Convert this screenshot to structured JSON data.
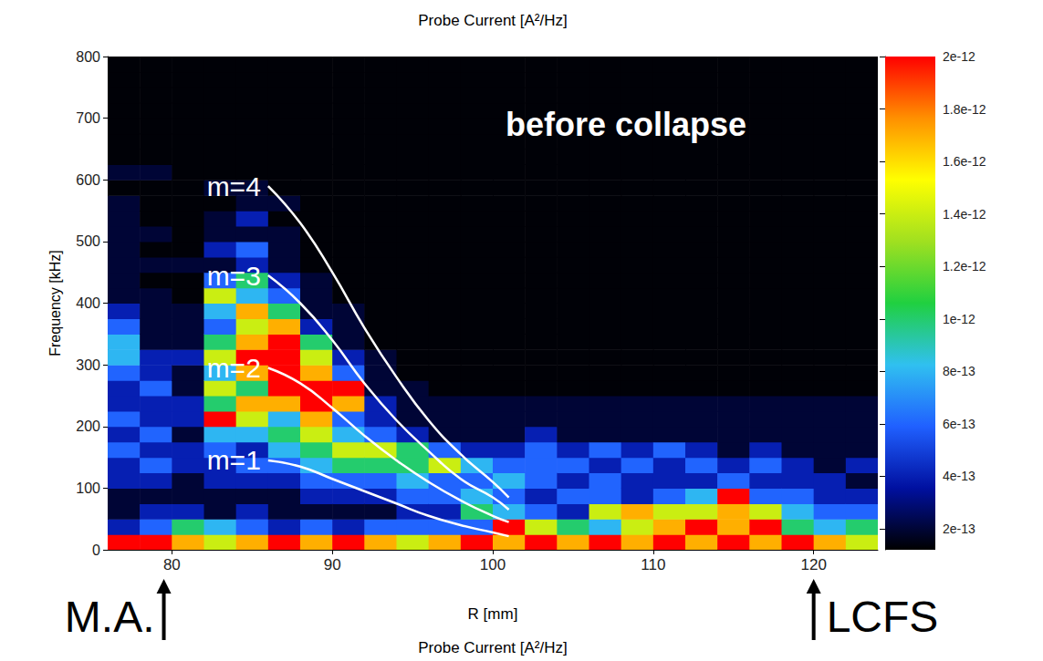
{
  "chart_data": {
    "type": "heatmap",
    "title": "Probe Current [A²/Hz]",
    "subtitle": "Probe Current [A²/Hz]",
    "x_label": "R [mm]",
    "y_label": "Frequency [kHz]",
    "xlim": [
      76,
      124
    ],
    "xticks": [
      80,
      90,
      100,
      110,
      120
    ],
    "ylim": [
      0,
      800
    ],
    "yticks": [
      0,
      100,
      200,
      300,
      400,
      500,
      600,
      700,
      800
    ],
    "grid": false,
    "x_bins": [
      76,
      78,
      80,
      82,
      84,
      86,
      88,
      90,
      92,
      94,
      96,
      98,
      100,
      102,
      104,
      106,
      108,
      110,
      112,
      114,
      116,
      118,
      120,
      122,
      124
    ],
    "y_bins": [
      0,
      25,
      50,
      75,
      100,
      125,
      150,
      175,
      200,
      225,
      250,
      275,
      300,
      325,
      350,
      375,
      400,
      425,
      450,
      475,
      500,
      525,
      550,
      575,
      600,
      625,
      650,
      675,
      700,
      725,
      750,
      775,
      800
    ],
    "cells": [
      [
        2e-12,
        4e-13,
        2e-13,
        2e-13,
        4e-13,
        4e-13,
        6e-13,
        4e-13,
        6e-13,
        4e-13,
        4e-13,
        6e-13,
        8e-13,
        8e-13,
        6e-13,
        4e-13,
        2e-13,
        2e-13,
        2e-13,
        2e-13,
        2e-13,
        2e-13,
        2e-13,
        1.3e-13,
        2e-13,
        1.3e-13,
        1.3e-13,
        1.3e-13,
        1.3e-13,
        1.3e-13,
        1.3e-13,
        1.3e-13
      ],
      [
        2e-12,
        6e-13,
        4e-13,
        2e-13,
        4e-13,
        6e-13,
        4e-13,
        6e-13,
        4e-13,
        4e-13,
        6e-13,
        4e-13,
        4e-13,
        2e-13,
        2e-13,
        2e-13,
        2e-13,
        1.3e-13,
        2e-13,
        1.3e-13,
        2e-13,
        1.3e-13,
        1.3e-13,
        1.3e-13,
        2e-13,
        1.3e-13,
        1.3e-13,
        1.3e-13,
        1.3e-13,
        1.3e-13,
        1.3e-13,
        1.3e-13
      ],
      [
        1.7e-12,
        1e-12,
        4e-13,
        2e-13,
        2e-13,
        4e-13,
        4e-13,
        2e-13,
        4e-13,
        4e-13,
        2e-13,
        2e-13,
        4e-13,
        2e-13,
        2e-13,
        2e-13,
        1.3e-13,
        1.3e-13,
        2e-13,
        1.3e-13,
        1.3e-13,
        1.3e-13,
        1.3e-13,
        1.3e-13,
        1.3e-13,
        1.3e-13,
        1.3e-13,
        1.3e-13,
        1.3e-13,
        1.3e-13,
        1.3e-13,
        1.3e-13
      ],
      [
        1.4e-12,
        8e-13,
        2e-13,
        2e-13,
        4e-13,
        4e-13,
        6e-13,
        8e-13,
        2e-12,
        1e-12,
        1.4e-12,
        8e-13,
        1.4e-12,
        1e-12,
        6e-13,
        8e-13,
        1.4e-12,
        6e-13,
        2e-13,
        4e-13,
        2e-13,
        2e-13,
        1.3e-13,
        2e-13,
        1.3e-13,
        1.3e-13,
        1.3e-13,
        1.3e-13,
        1.3e-13,
        1.3e-13,
        1.3e-13,
        1.3e-13
      ],
      [
        1.7e-12,
        6e-13,
        4e-13,
        2e-13,
        4e-13,
        6e-13,
        4e-13,
        8e-13,
        1.4e-12,
        1.7e-12,
        1e-12,
        1.7e-12,
        2e-12,
        1.7e-12,
        1.4e-12,
        1.7e-12,
        8e-13,
        1e-12,
        4e-13,
        6e-13,
        2e-13,
        4e-13,
        2e-13,
        2e-13,
        1.3e-13,
        1.3e-13,
        1.3e-13,
        1.3e-13,
        1.3e-13,
        1.3e-13,
        1.3e-13,
        1.3e-13
      ],
      [
        2e-12,
        4e-13,
        2e-13,
        2e-13,
        4e-13,
        6e-13,
        8e-13,
        1e-12,
        8e-13,
        1.7e-12,
        2e-12,
        2e-12,
        2e-12,
        2e-12,
        1.7e-12,
        1e-12,
        6e-13,
        4e-13,
        2e-13,
        2e-13,
        2e-13,
        1.3e-13,
        2e-13,
        1.3e-13,
        1.3e-13,
        1.3e-13,
        1.3e-13,
        1.3e-13,
        1.3e-13,
        1.3e-13,
        1.3e-13,
        1.3e-13
      ],
      [
        1.7e-12,
        6e-13,
        2e-13,
        4e-13,
        6e-13,
        8e-13,
        1e-12,
        1.4e-12,
        1.7e-12,
        2e-12,
        2e-12,
        1.7e-12,
        1.4e-12,
        1e-12,
        4e-13,
        2e-13,
        2e-13,
        2e-13,
        1.3e-13,
        1.3e-13,
        1.3e-13,
        1.3e-13,
        1.3e-13,
        1.3e-13,
        1.3e-13,
        1.3e-13,
        1.3e-13,
        1.3e-13,
        1.3e-13,
        1.3e-13,
        1.3e-13,
        1.3e-13
      ],
      [
        2e-12,
        4e-13,
        2e-13,
        4e-13,
        6e-13,
        1e-12,
        1.4e-12,
        8e-13,
        6e-13,
        1.7e-12,
        2e-12,
        6e-13,
        4e-13,
        2e-13,
        2e-13,
        2e-13,
        1.3e-13,
        1.3e-13,
        1.3e-13,
        1.3e-13,
        1.3e-13,
        1.3e-13,
        1.3e-13,
        1.3e-13,
        1.3e-13,
        1.3e-13,
        1.3e-13,
        1.3e-13,
        1.3e-13,
        1.3e-13,
        1.3e-13,
        1.3e-13
      ],
      [
        1.7e-12,
        6e-13,
        2e-13,
        4e-13,
        6e-13,
        1e-12,
        1.4e-12,
        6e-13,
        4e-13,
        4e-13,
        2e-13,
        2e-13,
        2e-13,
        1.3e-13,
        1.3e-13,
        1.3e-13,
        1.3e-13,
        1.3e-13,
        1.3e-13,
        1.3e-13,
        1.3e-13,
        1.3e-13,
        1.3e-13,
        1.3e-13,
        1.3e-13,
        1.3e-13,
        1.3e-13,
        1.3e-13,
        1.3e-13,
        1.3e-13,
        1.3e-13,
        1.3e-13
      ],
      [
        1.4e-12,
        6e-13,
        4e-13,
        6e-13,
        8e-13,
        1e-12,
        1e-12,
        4e-13,
        2e-13,
        2e-13,
        2e-13,
        1.3e-13,
        1.3e-13,
        1.3e-13,
        1.3e-13,
        1.3e-13,
        1.3e-13,
        1.3e-13,
        1.3e-13,
        1.3e-13,
        1.3e-13,
        1.3e-13,
        1.3e-13,
        1.3e-13,
        1.3e-13,
        1.3e-13,
        1.3e-13,
        1.3e-13,
        1.3e-13,
        1.3e-13,
        1.3e-13,
        1.3e-13
      ],
      [
        1.7e-12,
        6e-13,
        4e-13,
        6e-13,
        6e-13,
        1.4e-12,
        6e-13,
        2e-13,
        2e-13,
        2e-13,
        1.3e-13,
        1.3e-13,
        1.3e-13,
        1.3e-13,
        1.3e-13,
        1.3e-13,
        1.3e-13,
        1.3e-13,
        1.3e-13,
        1.3e-13,
        1.3e-13,
        1.3e-13,
        1.3e-13,
        1.3e-13,
        1.3e-13,
        1.3e-13,
        1.3e-13,
        1.3e-13,
        1.3e-13,
        1.3e-13,
        1.3e-13,
        1.3e-13
      ],
      [
        2e-12,
        6e-13,
        1e-12,
        8e-13,
        6e-13,
        8e-13,
        4e-13,
        2e-13,
        2e-13,
        2e-13,
        1.3e-13,
        1.3e-13,
        1.3e-13,
        1.3e-13,
        1.3e-13,
        1.3e-13,
        1.3e-13,
        1.3e-13,
        1.3e-13,
        1.3e-13,
        1.3e-13,
        1.3e-13,
        1.3e-13,
        1.3e-13,
        1.3e-13,
        1.3e-13,
        1.3e-13,
        1.3e-13,
        1.3e-13,
        1.3e-13,
        1.3e-13,
        1.3e-13
      ],
      [
        1.7e-12,
        2e-12,
        8e-13,
        6e-13,
        8e-13,
        6e-13,
        4e-13,
        2e-13,
        2e-13,
        2e-13,
        1.3e-13,
        1.3e-13,
        1.3e-13,
        1.3e-13,
        1.3e-13,
        1.3e-13,
        1.3e-13,
        1.3e-13,
        1.3e-13,
        1.3e-13,
        1.3e-13,
        1.3e-13,
        1.3e-13,
        1.3e-13,
        1.3e-13,
        1.3e-13,
        1.3e-13,
        1.3e-13,
        1.3e-13,
        1.3e-13,
        1.3e-13,
        1.3e-13
      ],
      [
        2e-12,
        1.4e-12,
        6e-13,
        4e-13,
        6e-13,
        6e-13,
        6e-13,
        4e-13,
        2e-13,
        2e-13,
        1.3e-13,
        1.3e-13,
        1.3e-13,
        1.3e-13,
        1.3e-13,
        1.3e-13,
        1.3e-13,
        1.3e-13,
        1.3e-13,
        1.3e-13,
        1.3e-13,
        1.3e-13,
        1.3e-13,
        1.3e-13,
        1.3e-13,
        1.3e-13,
        1.3e-13,
        1.3e-13,
        1.3e-13,
        1.3e-13,
        1.3e-13,
        1.3e-13
      ],
      [
        1.7e-12,
        1e-12,
        4e-13,
        6e-13,
        4e-13,
        6e-13,
        4e-13,
        2e-13,
        2e-13,
        2e-13,
        1.3e-13,
        1.3e-13,
        1.3e-13,
        1.3e-13,
        1.3e-13,
        1.3e-13,
        1.3e-13,
        1.3e-13,
        1.3e-13,
        1.3e-13,
        1.3e-13,
        1.3e-13,
        1.3e-13,
        1.3e-13,
        1.3e-13,
        1.3e-13,
        1.3e-13,
        1.3e-13,
        1.3e-13,
        1.3e-13,
        1.3e-13,
        1.3e-13
      ],
      [
        2e-12,
        8e-13,
        1.4e-12,
        6e-13,
        6e-13,
        4e-13,
        6e-13,
        2e-13,
        2e-13,
        2e-13,
        1.3e-13,
        1.3e-13,
        1.3e-13,
        1.3e-13,
        1.3e-13,
        1.3e-13,
        1.3e-13,
        1.3e-13,
        1.3e-13,
        1.3e-13,
        1.3e-13,
        1.3e-13,
        1.3e-13,
        1.3e-13,
        1.3e-13,
        1.3e-13,
        1.3e-13,
        1.3e-13,
        1.3e-13,
        1.3e-13,
        1.3e-13,
        1.3e-13
      ],
      [
        1.7e-12,
        1.4e-12,
        1.7e-12,
        4e-13,
        4e-13,
        6e-13,
        4e-13,
        2e-13,
        2e-13,
        2e-13,
        1.3e-13,
        1.3e-13,
        1.3e-13,
        1.3e-13,
        1.3e-13,
        1.3e-13,
        1.3e-13,
        1.3e-13,
        1.3e-13,
        1.3e-13,
        1.3e-13,
        1.3e-13,
        1.3e-13,
        1.3e-13,
        1.3e-13,
        1.3e-13,
        1.3e-13,
        1.3e-13,
        1.3e-13,
        1.3e-13,
        1.3e-13,
        1.3e-13
      ],
      [
        2e-12,
        1.7e-12,
        1.4e-12,
        6e-13,
        4e-13,
        4e-13,
        6e-13,
        2e-13,
        2e-13,
        2e-13,
        1.3e-13,
        1.3e-13,
        1.3e-13,
        1.3e-13,
        1.3e-13,
        1.3e-13,
        1.3e-13,
        1.3e-13,
        1.3e-13,
        1.3e-13,
        1.3e-13,
        1.3e-13,
        1.3e-13,
        1.3e-13,
        1.3e-13,
        1.3e-13,
        1.3e-13,
        1.3e-13,
        1.3e-13,
        1.3e-13,
        1.3e-13,
        1.3e-13
      ],
      [
        1.7e-12,
        2e-12,
        1.4e-12,
        8e-13,
        4e-13,
        6e-13,
        4e-13,
        2e-13,
        2e-13,
        2e-13,
        1.3e-13,
        1.3e-13,
        1.3e-13,
        1.3e-13,
        1.3e-13,
        1.3e-13,
        1.3e-13,
        1.3e-13,
        1.3e-13,
        1.3e-13,
        1.3e-13,
        1.3e-13,
        1.3e-13,
        1.3e-13,
        1.3e-13,
        1.3e-13,
        1.3e-13,
        1.3e-13,
        1.3e-13,
        1.3e-13,
        1.3e-13,
        1.3e-13
      ],
      [
        2e-12,
        1.7e-12,
        1.7e-12,
        2e-12,
        6e-13,
        4e-13,
        2e-13,
        2e-13,
        2e-13,
        2e-13,
        1.3e-13,
        1.3e-13,
        1.3e-13,
        1.3e-13,
        1.3e-13,
        1.3e-13,
        1.3e-13,
        1.3e-13,
        1.3e-13,
        1.3e-13,
        1.3e-13,
        1.3e-13,
        1.3e-13,
        1.3e-13,
        1.3e-13,
        1.3e-13,
        1.3e-13,
        1.3e-13,
        1.3e-13,
        1.3e-13,
        1.3e-13,
        1.3e-13
      ],
      [
        1.7e-12,
        2e-12,
        1.4e-12,
        6e-13,
        4e-13,
        6e-13,
        4e-13,
        2e-13,
        2e-13,
        2e-13,
        1.3e-13,
        1.3e-13,
        1.3e-13,
        1.3e-13,
        1.3e-13,
        1.3e-13,
        1.3e-13,
        1.3e-13,
        1.3e-13,
        1.3e-13,
        1.3e-13,
        1.3e-13,
        1.3e-13,
        1.3e-13,
        1.3e-13,
        1.3e-13,
        1.3e-13,
        1.3e-13,
        1.3e-13,
        1.3e-13,
        1.3e-13,
        1.3e-13
      ],
      [
        2e-12,
        1e-12,
        8e-13,
        6e-13,
        4e-13,
        4e-13,
        2e-13,
        2e-13,
        2e-13,
        2e-13,
        1.3e-13,
        1.3e-13,
        1.3e-13,
        1.3e-13,
        1.3e-13,
        1.3e-13,
        1.3e-13,
        1.3e-13,
        1.3e-13,
        1.3e-13,
        1.3e-13,
        1.3e-13,
        1.3e-13,
        1.3e-13,
        1.3e-13,
        1.3e-13,
        1.3e-13,
        1.3e-13,
        1.3e-13,
        1.3e-13,
        1.3e-13,
        1.3e-13
      ],
      [
        1.7e-12,
        8e-13,
        6e-13,
        4e-13,
        4e-13,
        2e-13,
        2e-13,
        2e-13,
        2e-13,
        2e-13,
        1.3e-13,
        1.3e-13,
        1.3e-13,
        1.3e-13,
        1.3e-13,
        1.3e-13,
        1.3e-13,
        1.3e-13,
        1.3e-13,
        1.3e-13,
        1.3e-13,
        1.3e-13,
        1.3e-13,
        1.3e-13,
        1.3e-13,
        1.3e-13,
        1.3e-13,
        1.3e-13,
        1.3e-13,
        1.3e-13,
        1.3e-13,
        1.3e-13
      ],
      [
        1.4e-12,
        1e-12,
        6e-13,
        4e-13,
        2e-13,
        4e-13,
        2e-13,
        2e-13,
        2e-13,
        2e-13,
        1.3e-13,
        1.3e-13,
        1.3e-13,
        1.3e-13,
        1.3e-13,
        1.3e-13,
        1.3e-13,
        1.3e-13,
        1.3e-13,
        1.3e-13,
        1.3e-13,
        1.3e-13,
        1.3e-13,
        1.3e-13,
        1.3e-13,
        1.3e-13,
        1.3e-13,
        1.3e-13,
        1.3e-13,
        1.3e-13,
        1.3e-13,
        1.3e-13
      ]
    ],
    "colorbar": {
      "range": [
        1.2e-13,
        2e-12
      ],
      "ticks": [
        {
          "value": 2e-13,
          "label": "2e-13"
        },
        {
          "value": 4e-13,
          "label": "4e-13"
        },
        {
          "value": 6e-13,
          "label": "6e-13"
        },
        {
          "value": 8e-13,
          "label": "8e-13"
        },
        {
          "value": 1e-12,
          "label": "1e-12"
        },
        {
          "value": 1.2e-12,
          "label": "1.2e-12"
        },
        {
          "value": 1.4e-12,
          "label": "1.4e-12"
        },
        {
          "value": 1.6e-12,
          "label": "1.6e-12"
        },
        {
          "value": 1.8e-12,
          "label": "1.8e-12"
        },
        {
          "value": 2e-12,
          "label": "2e-12"
        }
      ]
    },
    "series": [
      {
        "name": "m=1",
        "type": "line",
        "color": "#ffffff",
        "x": [
          86,
          88,
          90,
          92,
          94,
          96,
          98,
          100,
          101
        ],
        "values": [
          145,
          135,
          115,
          95,
          75,
          55,
          40,
          28,
          22
        ]
      },
      {
        "name": "m=2",
        "type": "line",
        "color": "#ffffff",
        "x": [
          86,
          88,
          90,
          92,
          94,
          96,
          98,
          100,
          101
        ],
        "values": [
          295,
          270,
          230,
          185,
          145,
          110,
          80,
          55,
          45
        ]
      },
      {
        "name": "m=3",
        "type": "line",
        "color": "#ffffff",
        "x": [
          86,
          88,
          90,
          92,
          94,
          96,
          98,
          100,
          101
        ],
        "values": [
          445,
          400,
          340,
          270,
          210,
          160,
          115,
          85,
          65
        ]
      },
      {
        "name": "m=4",
        "type": "line",
        "color": "#ffffff",
        "x": [
          86,
          88,
          90,
          92,
          94,
          96,
          98,
          100,
          101
        ],
        "values": [
          590,
          530,
          450,
          360,
          280,
          210,
          155,
          110,
          85
        ]
      }
    ],
    "annotations": [
      {
        "text": "before collapse",
        "x": 108.3,
        "y": 690
      },
      {
        "text": "M.A.",
        "x": 79.5
      },
      {
        "text": "LCFS",
        "x": 120
      }
    ]
  }
}
